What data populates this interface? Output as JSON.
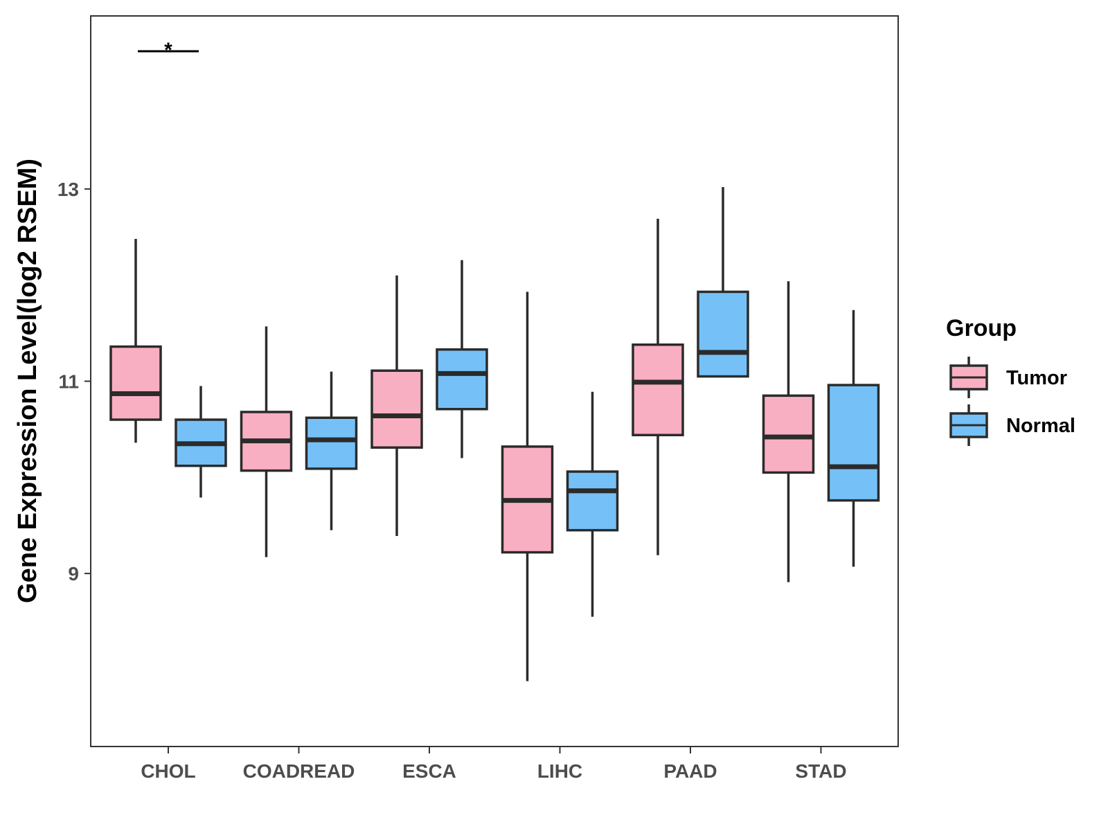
{
  "chart_data": {
    "type": "boxplot",
    "title": "",
    "xlabel": "",
    "ylabel": "Gene Expression Level(log2 RSEM)",
    "ylim": [
      7.2,
      14.8
    ],
    "yticks": [
      9,
      11,
      13
    ],
    "categories": [
      "CHOL",
      "COADREAD",
      "ESCA",
      "LIHC",
      "PAAD",
      "STAD"
    ],
    "legend": {
      "title": "Group",
      "position": "right",
      "entries": [
        "Tumor",
        "Normal"
      ]
    },
    "series": [
      {
        "name": "Tumor",
        "color": "#F9AFC2",
        "boxes": [
          {
            "whisker_low": 10.36,
            "q1": 10.6,
            "median": 10.87,
            "q3": 11.36,
            "whisker_high": 12.48
          },
          {
            "whisker_low": 9.17,
            "q1": 10.07,
            "median": 10.38,
            "q3": 10.68,
            "whisker_high": 11.57
          },
          {
            "whisker_low": 9.39,
            "q1": 10.31,
            "median": 10.64,
            "q3": 11.11,
            "whisker_high": 12.1
          },
          {
            "whisker_low": 7.88,
            "q1": 9.22,
            "median": 9.76,
            "q3": 10.32,
            "whisker_high": 11.93
          },
          {
            "whisker_low": 9.19,
            "q1": 10.44,
            "median": 10.99,
            "q3": 11.38,
            "whisker_high": 12.69
          },
          {
            "whisker_low": 8.91,
            "q1": 10.05,
            "median": 10.42,
            "q3": 10.85,
            "whisker_high": 12.04
          }
        ]
      },
      {
        "name": "Normal",
        "color": "#75C1F7",
        "boxes": [
          {
            "whisker_low": 9.79,
            "q1": 10.12,
            "median": 10.35,
            "q3": 10.6,
            "whisker_high": 10.95
          },
          {
            "whisker_low": 9.45,
            "q1": 10.09,
            "median": 10.39,
            "q3": 10.62,
            "whisker_high": 11.1
          },
          {
            "whisker_low": 10.2,
            "q1": 10.71,
            "median": 11.08,
            "q3": 11.33,
            "whisker_high": 12.26
          },
          {
            "whisker_low": 8.55,
            "q1": 9.45,
            "median": 9.86,
            "q3": 10.06,
            "whisker_high": 10.89
          },
          {
            "whisker_low": 11.04,
            "q1": 11.05,
            "median": 11.3,
            "q3": 11.93,
            "whisker_high": 13.02
          },
          {
            "whisker_low": 9.07,
            "q1": 9.76,
            "median": 10.11,
            "q3": 10.96,
            "whisker_high": 11.74
          }
        ]
      }
    ],
    "annotations": [
      {
        "category": "CHOL",
        "label": "*"
      }
    ]
  }
}
